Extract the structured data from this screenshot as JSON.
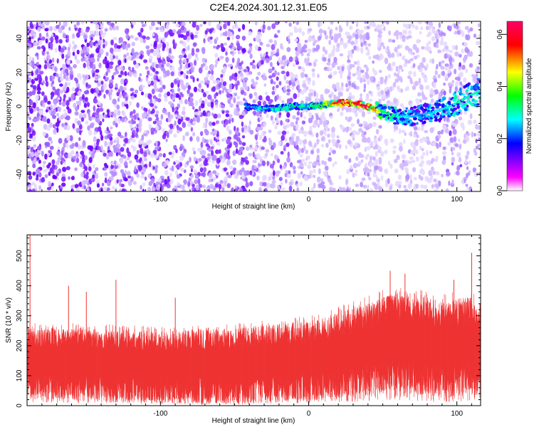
{
  "title": "C2E4.2024.301.12.31.E05",
  "chart_data": [
    {
      "type": "heatmap",
      "xlabel": "Height of straight line (km)",
      "ylabel": "Frequency (Hz)",
      "xlim": [
        -190,
        116
      ],
      "ylim": [
        -50,
        50
      ],
      "x_ticks": [
        -100,
        0,
        100
      ],
      "y_ticks": [
        -40,
        -20,
        0,
        20,
        40
      ],
      "colorbar": {
        "label": "Normalized spectral amplitude",
        "range": [
          0.0,
          0.65
        ],
        "ticks": [
          0.0,
          0.2,
          0.4,
          0.6
        ],
        "colors": [
          "#ffffff",
          "#ff00ff",
          "#0000ff",
          "#00ffff",
          "#00ff00",
          "#ffff00",
          "#ff0000",
          "#ff0066"
        ]
      },
      "signal_track": {
        "x": [
          -42,
          -30,
          -20,
          -10,
          0,
          10,
          20,
          30,
          40,
          50,
          60,
          70,
          80,
          90,
          100,
          110,
          116
        ],
        "y": [
          0,
          -1,
          -1,
          0,
          0,
          1,
          2,
          2,
          0,
          -3,
          -6,
          -6,
          -4,
          -2,
          2,
          7,
          9
        ],
        "peak_amplitude": [
          0.25,
          0.3,
          0.3,
          0.32,
          0.3,
          0.4,
          0.62,
          0.6,
          0.65,
          0.35,
          0.3,
          0.25,
          0.25,
          0.28,
          0.3,
          0.3,
          0.3
        ]
      },
      "background_level_left": 0.08,
      "background_level_right": 0.03
    },
    {
      "type": "area",
      "xlabel": "Height of straight line (km)",
      "ylabel": "SNR (10 * v/v)",
      "xlim": [
        -190,
        116
      ],
      "ylim": [
        0,
        570
      ],
      "x_ticks": [
        -100,
        0,
        100
      ],
      "y_ticks": [
        0,
        100,
        200,
        300,
        400,
        500
      ],
      "color": "#ee3333",
      "envelope": {
        "x": [
          -190,
          -150,
          -100,
          -50,
          0,
          30,
          60,
          90,
          116
        ],
        "lower": [
          50,
          40,
          30,
          30,
          40,
          60,
          80,
          60,
          70
        ],
        "upper": [
          230,
          230,
          220,
          230,
          250,
          290,
          340,
          310,
          330
        ]
      },
      "spikes": [
        {
          "x": -188,
          "y": 570
        },
        {
          "x": -162,
          "y": 400
        },
        {
          "x": -150,
          "y": 380
        },
        {
          "x": -130,
          "y": 420
        },
        {
          "x": -90,
          "y": 360
        },
        {
          "x": 55,
          "y": 450
        },
        {
          "x": 65,
          "y": 440
        },
        {
          "x": 98,
          "y": 420
        },
        {
          "x": 110,
          "y": 510
        }
      ]
    }
  ]
}
